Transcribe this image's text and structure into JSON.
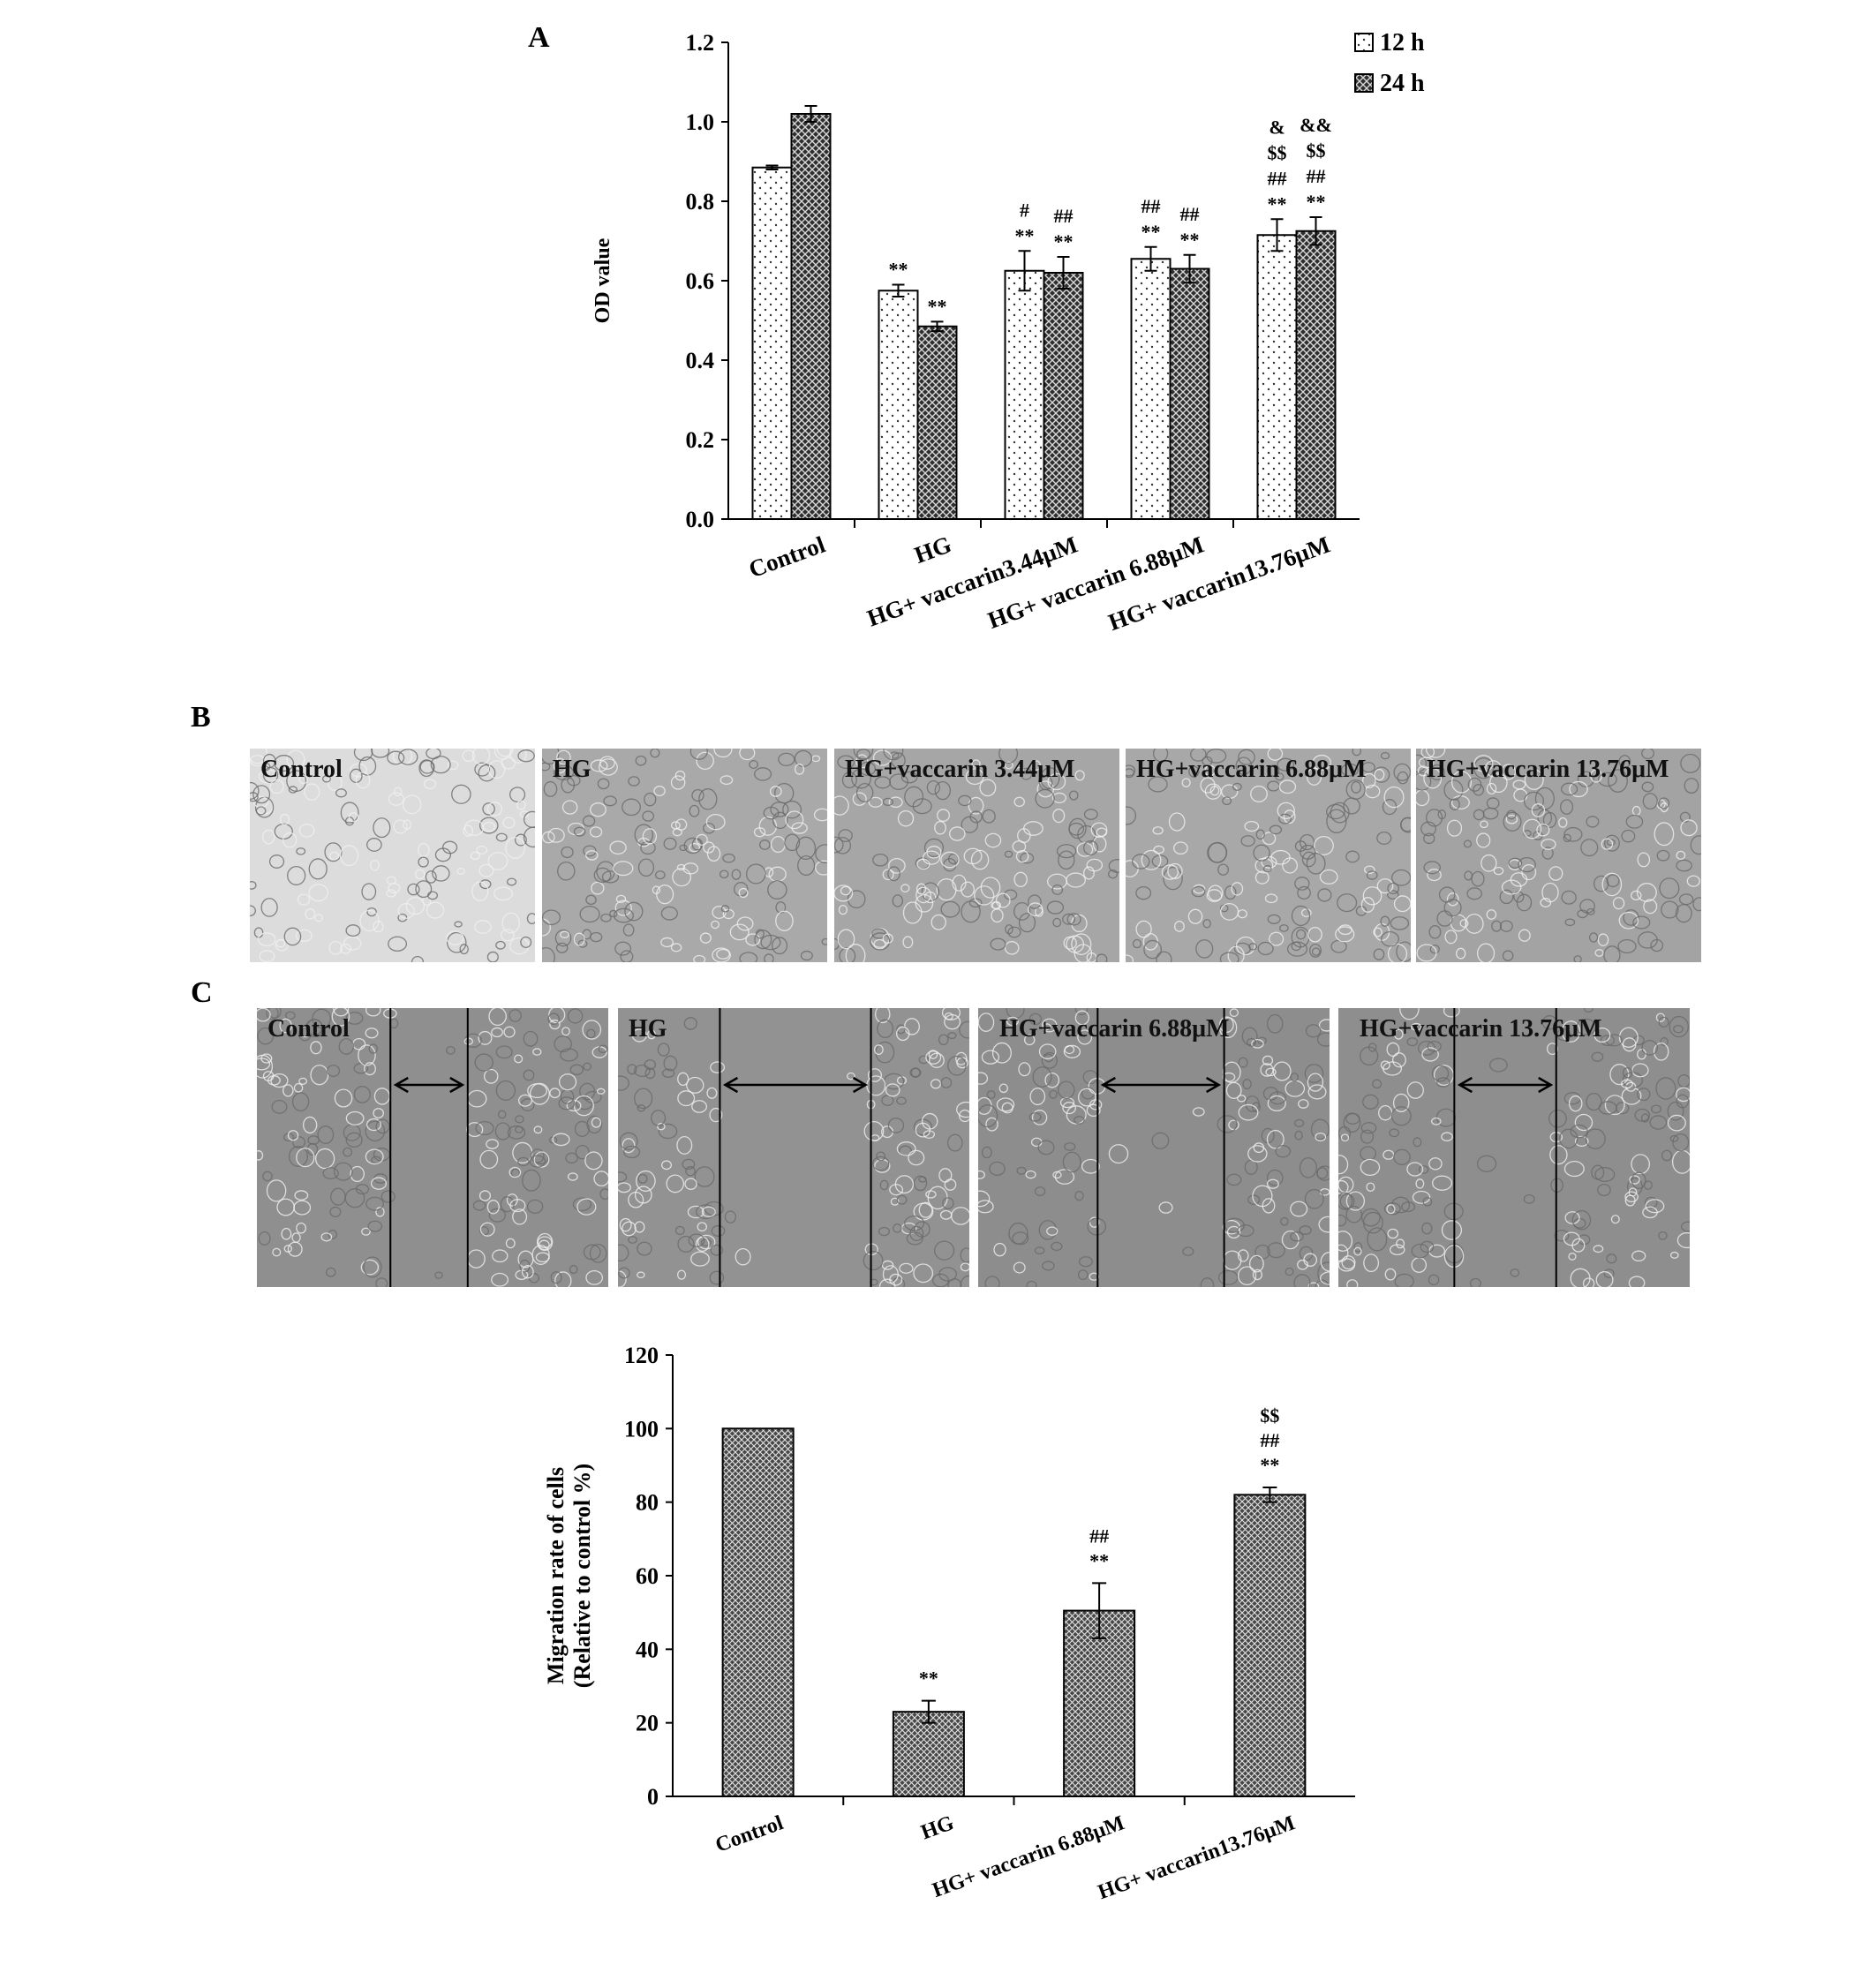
{
  "panels": {
    "a": "A",
    "b": "B",
    "c": "C"
  },
  "chart_data": [
    {
      "type": "bar",
      "ylabel": "OD value",
      "xlabel": "",
      "ylim": [
        0,
        1.2
      ],
      "yticks": [
        "0.0",
        "0.2",
        "0.4",
        "0.6",
        "0.8",
        "1.0",
        "1.2"
      ],
      "categories": [
        "Control",
        "HG",
        "HG+ vaccarin3.44μM",
        "HG+ vaccarin 6.88μM",
        "HG+ vaccarin13.76μM"
      ],
      "legend_position": "top-right",
      "series": [
        {
          "name": "12 h",
          "pattern": "dots",
          "values": [
            0.885,
            0.575,
            0.625,
            0.655,
            0.715
          ],
          "errors": [
            0.005,
            0.015,
            0.05,
            0.03,
            0.04
          ],
          "annotations": [
            [],
            [
              "**"
            ],
            [
              "#",
              "**"
            ],
            [
              "##",
              "**"
            ],
            [
              "&",
              "$$",
              "##",
              "**"
            ]
          ]
        },
        {
          "name": "24 h",
          "pattern": "crosshatch",
          "values": [
            1.02,
            0.485,
            0.62,
            0.63,
            0.725
          ],
          "errors": [
            0.02,
            0.012,
            0.04,
            0.035,
            0.035
          ],
          "annotations": [
            [],
            [
              "**"
            ],
            [
              "##",
              "**"
            ],
            [
              "##",
              "**"
            ],
            [
              "&&",
              "$$",
              "##",
              "**"
            ]
          ]
        }
      ]
    },
    {
      "type": "bar",
      "ylabel": "Migration rate of cells",
      "ylabel2": "(Relative to control %)",
      "xlabel": "",
      "ylim": [
        0,
        120
      ],
      "yticks": [
        "0",
        "20",
        "40",
        "60",
        "80",
        "100",
        "120"
      ],
      "categories": [
        "Control",
        "HG",
        "HG+ vaccarin 6.88μM",
        "HG+ vaccarin13.76μM"
      ],
      "series": [
        {
          "values": [
            100,
            23,
            50.5,
            82
          ],
          "errors": [
            0,
            3,
            7.5,
            2
          ],
          "annotations": [
            [],
            [
              "**"
            ],
            [
              "##",
              "**"
            ],
            [
              "$$",
              "##",
              "**"
            ]
          ]
        }
      ]
    }
  ],
  "micrographs_b": [
    {
      "label": "Control",
      "shade": "#dcdcdc"
    },
    {
      "label": "HG",
      "shade": "#a9a9a9"
    },
    {
      "label": "HG+vaccarin 3.44μM",
      "shade": "#a6a6a6"
    },
    {
      "label": "HG+vaccarin 6.88μM",
      "shade": "#a8a8a8"
    },
    {
      "label": "HG+vaccarin 13.76μM",
      "shade": "#a3a3a3"
    }
  ],
  "micrographs_c": [
    {
      "label": "Control",
      "shade": "#8f8f8f"
    },
    {
      "label": "HG",
      "shade": "#929292"
    },
    {
      "label": "HG+vaccarin 6.88μM",
      "shade": "#8d8d8d"
    },
    {
      "label": "HG+vaccarin 13.76μM",
      "shade": "#8e8e8e"
    }
  ]
}
